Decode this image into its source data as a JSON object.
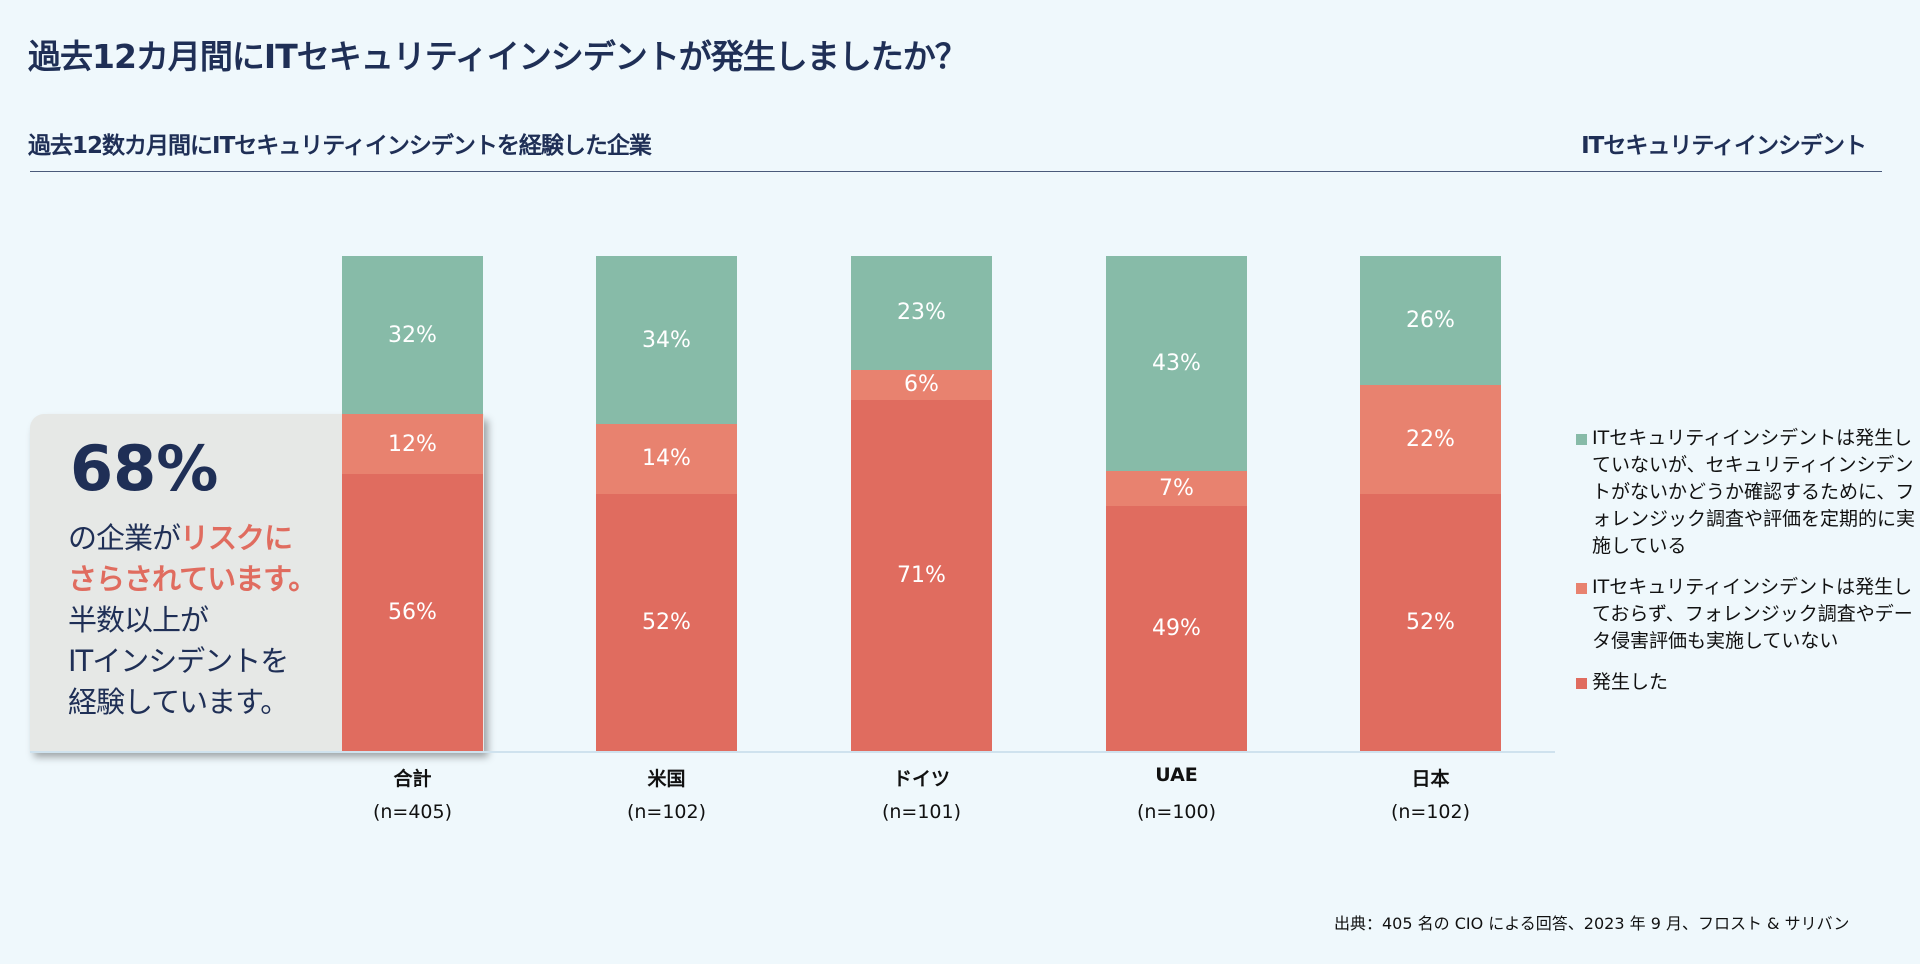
{
  "header": {
    "title": "過去12カ月間にITセキュリティインシデントが発生しましたか？",
    "subtitle": "過去12数カ月間にITセキュリティインシデントを経験した企業",
    "subtitle_right": "ITセキュリティインシデント"
  },
  "callout": {
    "stat": "68%",
    "line1_pre": "の企業が",
    "line1_hl": "リスクに",
    "line2_hl": "さらされています。",
    "line3": "半数以上が",
    "line4": "ITインシデントを",
    "line5": "経験しています。"
  },
  "footnote": "出典：405 名の CIO による回答、2023 年 9 月、フロスト & サリバン",
  "chart_data": {
    "type": "bar",
    "stacked": true,
    "title": "過去12数カ月間にITセキュリティインシデントを経験した企業",
    "categories": [
      "合計",
      "米国",
      "ドイツ",
      "UAE",
      "日本"
    ],
    "sample_sizes": [
      "(n=405)",
      "(n=102)",
      "(n=101)",
      "(n=100)",
      "(n=102)"
    ],
    "ylim": [
      0,
      100
    ],
    "legend_position": "right",
    "series": [
      {
        "name": "発生した",
        "color": "#e06c5f",
        "values": [
          56,
          52,
          71,
          49,
          52
        ]
      },
      {
        "name": "ITセキュリティインシデントは発生しておらず、フォレンジック調査やデータ侵害評価も実施していない",
        "color": "#e8826f",
        "values": [
          12,
          14,
          6,
          7,
          22
        ]
      },
      {
        "name": "ITセキュリティインシデントは発生していないが、セキュリティインシデントがないかどうか確認するために、フォレンジック調査や評価を定期的に実施している",
        "color": "#87bba8",
        "values": [
          32,
          34,
          23,
          43,
          26
        ]
      }
    ]
  }
}
